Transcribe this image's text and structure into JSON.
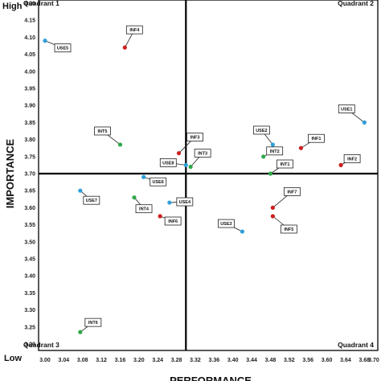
{
  "chart_data": {
    "type": "scatter",
    "xlabel": "PERFORMANCE",
    "ylabel": "IMPORTANCE",
    "xlim": [
      3.0,
      3.7
    ],
    "ylim": [
      3.2,
      4.2
    ],
    "x_ticks": [
      "3.00",
      "3.04",
      "3.08",
      "3.12",
      "3.16",
      "3.20",
      "3.24",
      "3.28",
      "3.32",
      "3.36",
      "3.40",
      "3.44",
      "3.48",
      "3.52",
      "3.56",
      "3.60",
      "3.64",
      "3.68",
      "3.70"
    ],
    "x_tick_values": [
      3.0,
      3.04,
      3.08,
      3.12,
      3.16,
      3.2,
      3.24,
      3.28,
      3.32,
      3.36,
      3.4,
      3.44,
      3.48,
      3.52,
      3.56,
      3.6,
      3.64,
      3.68,
      3.7
    ],
    "y_ticks": [
      "3.20",
      "3.25",
      "3.30",
      "3.35",
      "3.40",
      "3.45",
      "3.50",
      "3.55",
      "3.60",
      "3.65",
      "3.70",
      "3.75",
      "3.80",
      "3.85",
      "3.90",
      "3.95",
      "4.00",
      "4.05",
      "4.10",
      "4.15",
      "4.20"
    ],
    "y_tick_values": [
      3.2,
      3.25,
      3.3,
      3.35,
      3.4,
      3.45,
      3.5,
      3.55,
      3.6,
      3.65,
      3.7,
      3.75,
      3.8,
      3.85,
      3.9,
      3.95,
      4.0,
      4.05,
      4.1,
      4.15,
      4.2
    ],
    "divider_x": 3.3,
    "divider_y": 3.7,
    "quadrants": [
      "Quadrant 1",
      "Quadrant 2",
      "Quadrant 3",
      "Quadrant 4"
    ],
    "y_end_labels": {
      "high": "High",
      "low": "Low"
    },
    "grid": false,
    "legend": "none",
    "colors": {
      "USE": "#2e9fd8",
      "INF": "#cc1f1f",
      "INT": "#2ea84a",
      "divider": "#000000",
      "frame": "#000000"
    },
    "points": [
      {
        "label": "USE5",
        "x": 3.0,
        "y": 4.09,
        "group": "USE"
      },
      {
        "label": "INF4",
        "x": 3.17,
        "y": 4.07,
        "group": "INF"
      },
      {
        "label": "INT5",
        "x": 3.16,
        "y": 3.785,
        "group": "INT"
      },
      {
        "label": "INF3",
        "x": 3.285,
        "y": 3.76,
        "group": "INF"
      },
      {
        "label": "USE8",
        "x": 3.3,
        "y": 3.725,
        "group": "USE"
      },
      {
        "label": "INT3",
        "x": 3.31,
        "y": 3.72,
        "group": "INT"
      },
      {
        "label": "USE6",
        "x": 3.21,
        "y": 3.69,
        "group": "USE"
      },
      {
        "label": "USE7",
        "x": 3.075,
        "y": 3.65,
        "group": "USE"
      },
      {
        "label": "INT4",
        "x": 3.19,
        "y": 3.63,
        "group": "INT"
      },
      {
        "label": "USE4",
        "x": 3.265,
        "y": 3.615,
        "group": "USE"
      },
      {
        "label": "INF6",
        "x": 3.245,
        "y": 3.575,
        "group": "INF"
      },
      {
        "label": "INT6",
        "x": 3.075,
        "y": 3.235,
        "group": "INT"
      },
      {
        "label": "USE1",
        "x": 3.68,
        "y": 3.85,
        "group": "USE"
      },
      {
        "label": "USE2",
        "x": 3.485,
        "y": 3.785,
        "group": "USE"
      },
      {
        "label": "INF1",
        "x": 3.545,
        "y": 3.775,
        "group": "INF"
      },
      {
        "label": "INT2",
        "x": 3.465,
        "y": 3.75,
        "group": "INT"
      },
      {
        "label": "INF2",
        "x": 3.63,
        "y": 3.725,
        "group": "INF"
      },
      {
        "label": "INT1",
        "x": 3.48,
        "y": 3.7,
        "group": "INT"
      },
      {
        "label": "INF7",
        "x": 3.485,
        "y": 3.6,
        "group": "INF"
      },
      {
        "label": "INF5",
        "x": 3.485,
        "y": 3.575,
        "group": "INF"
      },
      {
        "label": "USE3",
        "x": 3.42,
        "y": 3.53,
        "group": "USE"
      }
    ]
  }
}
